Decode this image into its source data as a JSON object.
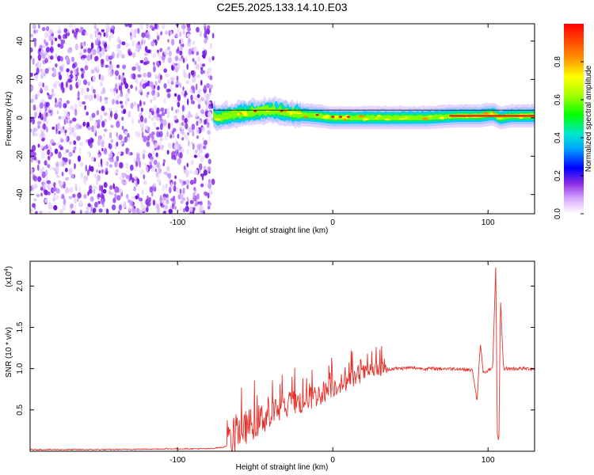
{
  "figure": {
    "title": "C2E5.2025.133.14.10.E03"
  },
  "chart_data": [
    {
      "type": "heatmap",
      "xlabel": "Height of straight line (km)",
      "ylabel": "Frequency (Hz)",
      "xlim": [
        -195,
        130
      ],
      "ylim": [
        -50,
        49
      ],
      "xticks": [
        -100,
        0,
        100
      ],
      "yticks": [
        -40,
        -20,
        0,
        20,
        40
      ],
      "colorbar": {
        "label": "Normalized spectral amplitude",
        "range": [
          0,
          1
        ],
        "ticks": [
          0.0,
          0.2,
          0.4,
          0.6,
          0.8
        ],
        "colormap": [
          "#ffffff",
          "#8a2be2",
          "#0000ff",
          "#00c8ff",
          "#00ff00",
          "#ffff00",
          "#ff8000",
          "#ff0000"
        ]
      },
      "noise_region_x": [
        -195,
        -77
      ],
      "signal_band": {
        "x_start": -77,
        "center_freq_hz": 1,
        "track": [
          [
            -75,
            0
          ],
          [
            -60,
            2
          ],
          [
            -40,
            4
          ],
          [
            -25,
            2
          ],
          [
            -10,
            1
          ],
          [
            0,
            0
          ],
          [
            20,
            0
          ],
          [
            40,
            0
          ],
          [
            60,
            0
          ],
          [
            80,
            1
          ],
          [
            95,
            1
          ],
          [
            103,
            2
          ],
          [
            108,
            0
          ],
          [
            115,
            1
          ],
          [
            130,
            1
          ]
        ],
        "peak_segment_x": [
          75,
          130
        ]
      },
      "grid": false
    },
    {
      "type": "line",
      "xlabel": "Height of straight line (km)",
      "ylabel": "SNR (10 * v/v)",
      "y_multiplier_label": "(x10",
      "y_multiplier_exp": "4",
      "xlim": [
        -195,
        130
      ],
      "ylim": [
        0,
        2.3
      ],
      "xticks": [
        -100,
        0,
        100
      ],
      "yticks": [
        0.5,
        1.0,
        1.5,
        2.0
      ],
      "ytick_labels": [
        "0.5",
        "1.0",
        "1.5",
        "2.0"
      ],
      "color": "#e8312a",
      "grid": false,
      "series": [
        {
          "x": [
            -195,
            -150,
            -100,
            -80,
            -70,
            -65,
            -60,
            -50,
            -40,
            -30,
            -20,
            -10,
            0,
            10,
            20,
            30,
            40,
            50,
            60,
            70,
            80,
            90,
            93,
            95,
            97,
            100,
            103,
            105,
            106,
            107,
            108,
            110,
            115,
            120,
            130
          ],
          "y": [
            0.02,
            0.02,
            0.03,
            0.03,
            0.05,
            0.12,
            0.25,
            0.35,
            0.45,
            0.55,
            0.6,
            0.68,
            0.78,
            0.85,
            0.95,
            0.98,
            1.0,
            1.01,
            1.0,
            1.0,
            1.0,
            0.98,
            0.6,
            1.3,
            0.95,
            0.98,
            1.0,
            2.25,
            0.2,
            0.1,
            1.85,
            1.0,
            1.0,
            1.0,
            1.0
          ]
        }
      ]
    }
  ]
}
